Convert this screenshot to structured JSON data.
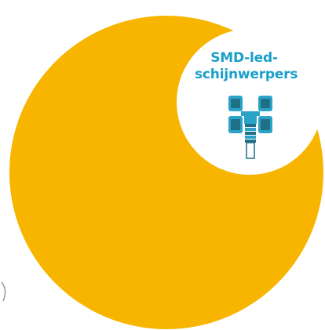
{
  "colors": {
    "accent": "#f7b500",
    "badge_text": "#1a9fc9",
    "icon_fill": "#2ba3c9",
    "icon_dark": "#1f6f86",
    "background": "#ffffff"
  },
  "badge": {
    "line1": "SMD-led-",
    "line2": "schijnwerpers"
  },
  "icons": {
    "product": "smd-led-floodlight-icon"
  }
}
